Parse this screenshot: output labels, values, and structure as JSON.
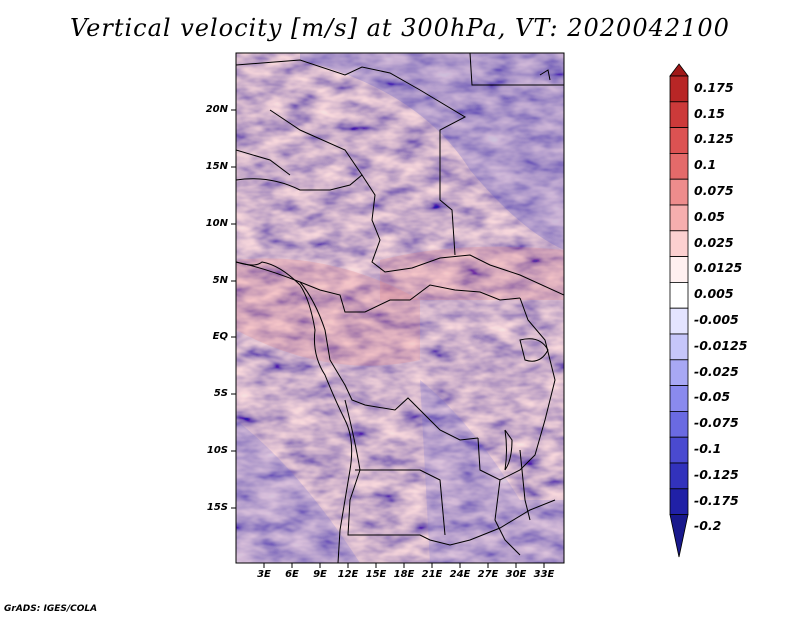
{
  "title": "Vertical velocity [m/s] at 300hPa, VT: 2020042100",
  "map": {
    "lat_labels": [
      "20N",
      "15N",
      "10N",
      "5N",
      "EQ",
      "5S",
      "10S",
      "15S"
    ],
    "lon_labels": [
      "3E",
      "6E",
      "9E",
      "12E",
      "15E",
      "18E",
      "21E",
      "24E",
      "27E",
      "30E",
      "33E"
    ],
    "lat_range": [
      -20,
      24.5
    ],
    "lon_range": [
      0,
      35
    ]
  },
  "colorbar": {
    "labels": [
      "0.175",
      "0.15",
      "0.125",
      "0.1",
      "0.075",
      "0.05",
      "0.025",
      "0.0125",
      "0.005",
      "-0.005",
      "-0.0125",
      "-0.025",
      "-0.05",
      "-0.075",
      "-0.1",
      "-0.125",
      "-0.175",
      "-0.2"
    ],
    "colors": [
      "#a01818",
      "#b82626",
      "#cc3a3a",
      "#dc5252",
      "#e46a6a",
      "#ee8c8c",
      "#f6aeae",
      "#fcd0d0",
      "#fff0f0",
      "#ffffff",
      "#e4e4ff",
      "#c6c6fa",
      "#a8a8f4",
      "#8a8aee",
      "#6a6ae2",
      "#4a4ad0",
      "#3232bc",
      "#2020a6",
      "#18188c"
    ]
  },
  "footer": "GrADS: IGES/COLA"
}
